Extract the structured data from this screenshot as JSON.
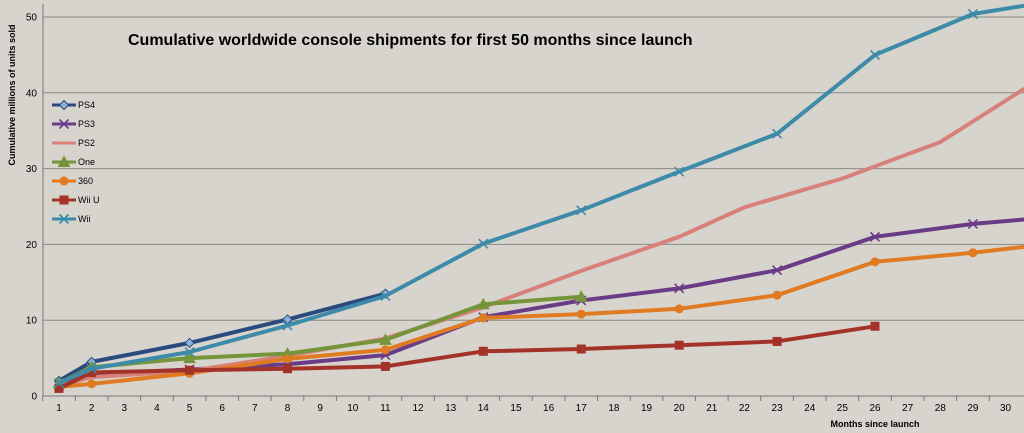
{
  "chart_data": {
    "type": "line",
    "title": "Cumulative worldwide console shipments for first 50 months since launch",
    "xlabel": "Months since launch",
    "ylabel": "Cumulative millions of units sold",
    "x_ticks": [
      1,
      2,
      3,
      4,
      5,
      6,
      7,
      8,
      9,
      10,
      11,
      12,
      13,
      14,
      15,
      16,
      17,
      18,
      19,
      20,
      21,
      22,
      23,
      24,
      25,
      26,
      27,
      28,
      29,
      30
    ],
    "y_ticks": [
      0,
      10,
      20,
      30,
      40,
      50
    ],
    "ylim": [
      0,
      52
    ],
    "grid": "horizontal",
    "legend": "left",
    "series": [
      {
        "name": "PS4",
        "color": "#2b4a7e",
        "marker": "diamond",
        "points": [
          [
            1,
            2.0
          ],
          [
            2,
            4.5
          ],
          [
            5,
            7.0
          ],
          [
            8,
            10.1
          ],
          [
            11,
            13.5
          ]
        ]
      },
      {
        "name": "PS3",
        "color": "#6a3c87",
        "marker": "x",
        "points": [
          [
            1,
            1.4
          ],
          [
            2,
            2.9
          ],
          [
            5,
            3.5
          ],
          [
            8,
            4.2
          ],
          [
            11,
            5.4
          ],
          [
            14,
            10.4
          ],
          [
            17,
            12.6
          ],
          [
            20,
            14.2
          ],
          [
            23,
            16.6
          ],
          [
            26,
            21.0
          ],
          [
            29,
            22.7
          ],
          [
            30.6,
            23.3
          ]
        ]
      },
      {
        "name": "PS2",
        "color": "#d8807a",
        "marker": "none",
        "points": [
          [
            1,
            1.3
          ],
          [
            2,
            2.5
          ],
          [
            5,
            3.3
          ],
          [
            8,
            5.3
          ],
          [
            11,
            7.6
          ],
          [
            14,
            11.7
          ],
          [
            17,
            16.5
          ],
          [
            20,
            21.0
          ],
          [
            22,
            24.9
          ],
          [
            25,
            28.7
          ],
          [
            28,
            33.5
          ],
          [
            30.6,
            40.6
          ]
        ]
      },
      {
        "name": "One",
        "color": "#75953a",
        "marker": "triangle",
        "points": [
          [
            1,
            1.7
          ],
          [
            2,
            3.8
          ],
          [
            5,
            5.0
          ],
          [
            8,
            5.6
          ],
          [
            11,
            7.4
          ],
          [
            14,
            12.1
          ],
          [
            17,
            13.1
          ]
        ]
      },
      {
        "name": "360",
        "color": "#e07b22",
        "marker": "circle",
        "points": [
          [
            1,
            1.2
          ],
          [
            2,
            1.6
          ],
          [
            5,
            3.0
          ],
          [
            8,
            4.9
          ],
          [
            11,
            6.1
          ],
          [
            14,
            10.3
          ],
          [
            17,
            10.8
          ],
          [
            20,
            11.5
          ],
          [
            23,
            13.3
          ],
          [
            26,
            17.7
          ],
          [
            29,
            18.9
          ],
          [
            30.6,
            19.7
          ]
        ]
      },
      {
        "name": "Wii U",
        "color": "#a33329",
        "marker": "square",
        "points": [
          [
            1,
            1.0
          ],
          [
            2,
            3.1
          ],
          [
            5,
            3.4
          ],
          [
            8,
            3.6
          ],
          [
            11,
            3.9
          ],
          [
            14,
            5.9
          ],
          [
            17,
            6.2
          ],
          [
            20,
            6.7
          ],
          [
            23,
            7.2
          ],
          [
            26,
            9.2
          ]
        ]
      },
      {
        "name": "Wii",
        "color": "#3d8ba8",
        "marker": "x",
        "points": [
          [
            1,
            1.7
          ],
          [
            2,
            3.6
          ],
          [
            5,
            5.8
          ],
          [
            8,
            9.3
          ],
          [
            11,
            13.2
          ],
          [
            14,
            20.1
          ],
          [
            17,
            24.5
          ],
          [
            20,
            29.6
          ],
          [
            23,
            34.6
          ],
          [
            26,
            45.0
          ],
          [
            29,
            50.4
          ],
          [
            30.6,
            51.5
          ]
        ]
      }
    ]
  }
}
